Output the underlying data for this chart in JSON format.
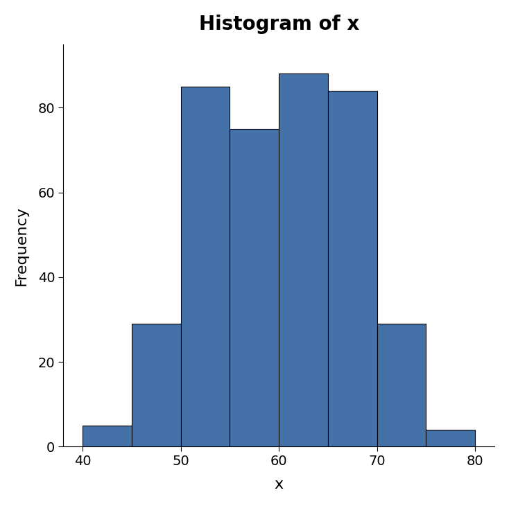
{
  "title": "Histogram of x",
  "xlabel": "x",
  "ylabel": "Frequency",
  "bar_color": "#4472A8",
  "edge_color": "#000000",
  "bin_edges": [
    40,
    45,
    50,
    55,
    60,
    65,
    70,
    75,
    80
  ],
  "frequencies": [
    5,
    29,
    85,
    75,
    88,
    84,
    29,
    4
  ],
  "xlim": [
    38,
    82
  ],
  "ylim": [
    0,
    95
  ],
  "xticks": [
    40,
    50,
    60,
    70,
    80
  ],
  "yticks": [
    0,
    20,
    40,
    60,
    80
  ],
  "title_fontsize": 20,
  "label_fontsize": 16,
  "tick_fontsize": 14,
  "title_fontweight": "bold",
  "background_color": "#ffffff",
  "figsize": [
    7.34,
    7.3
  ],
  "dpi": 100
}
